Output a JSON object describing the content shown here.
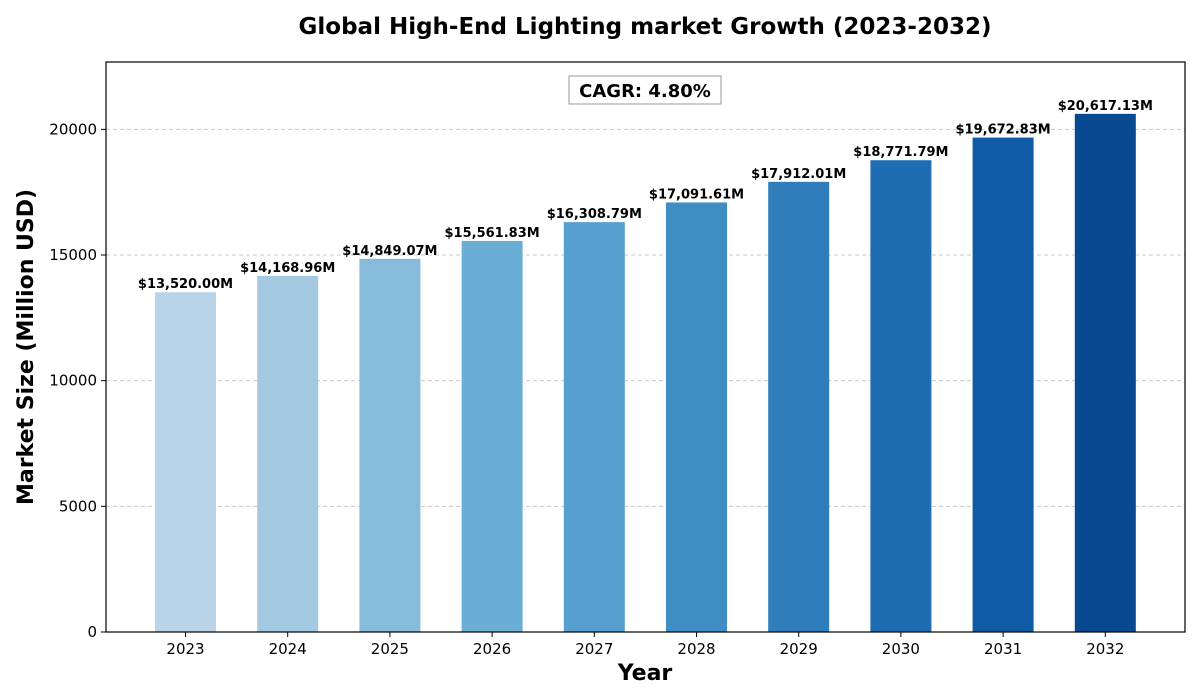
{
  "chart_data": {
    "type": "bar",
    "title": "Global High-End Lighting market Growth (2023-2032)",
    "xlabel": "Year",
    "ylabel": "Market Size (Million USD)",
    "categories": [
      "2023",
      "2024",
      "2025",
      "2026",
      "2027",
      "2028",
      "2029",
      "2030",
      "2031",
      "2032"
    ],
    "values": [
      13520.0,
      14168.96,
      14849.07,
      15561.83,
      16308.79,
      17091.61,
      17912.01,
      18771.79,
      19672.83,
      20617.13
    ],
    "data_labels": [
      "$13,520.00M",
      "$14,168.96M",
      "$14,849.07M",
      "$15,561.83M",
      "$16,308.79M",
      "$17,091.61M",
      "$17,912.01M",
      "$18,771.79M",
      "$19,672.83M",
      "$20,617.13M"
    ],
    "bar_colors": [
      "#b9d4e9",
      "#a3cae2",
      "#86bbdb",
      "#6aadd5",
      "#569fcf",
      "#408dc4",
      "#2f7dbb",
      "#1e6db2",
      "#105ba6",
      "#084a92"
    ],
    "ylim": [
      0,
      22680
    ],
    "yticks": [
      0,
      5000,
      10000,
      15000,
      20000
    ],
    "ytick_labels": [
      "0",
      "5000",
      "10000",
      "15000",
      "20000"
    ],
    "grid": true,
    "grid_axis": "y",
    "annotation": "CAGR: 4.80%"
  }
}
